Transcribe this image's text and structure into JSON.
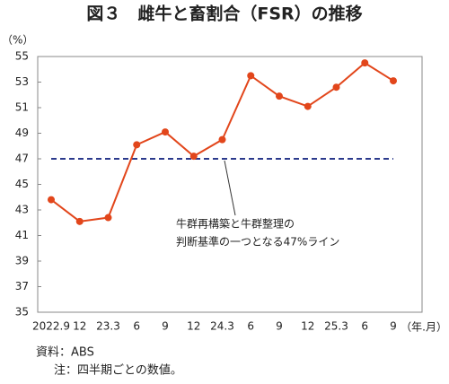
{
  "chart_data": {
    "type": "line",
    "title": "図３　雌牛と畜割合（FSR）の推移",
    "y_unit": "（%）",
    "x_unit": "（年.月）",
    "categories": [
      "2022.9",
      "12",
      "23.3",
      "6",
      "9",
      "12",
      "24.3",
      "6",
      "9",
      "12",
      "25.3",
      "6",
      "9"
    ],
    "series": [
      {
        "color": "#e2461b",
        "values": [
          43.8,
          42.1,
          42.4,
          48.1,
          49.1,
          47.2,
          48.5,
          53.5,
          51.9,
          51.1,
          52.6,
          54.5,
          53.1
        ]
      }
    ],
    "ylim": [
      35,
      55
    ],
    "yticks": [
      35,
      37,
      39,
      41,
      43,
      45,
      47,
      49,
      51,
      53,
      55
    ],
    "grid": false,
    "reference_line": {
      "value": 47,
      "color": "#2b3a8c",
      "label": [
        "牛群再構築と牛群整理の",
        "判断基準の一つとなる47%ライン"
      ]
    },
    "notes": [
      "資料：ABS",
      "注：四半期ごとの数値。"
    ]
  }
}
